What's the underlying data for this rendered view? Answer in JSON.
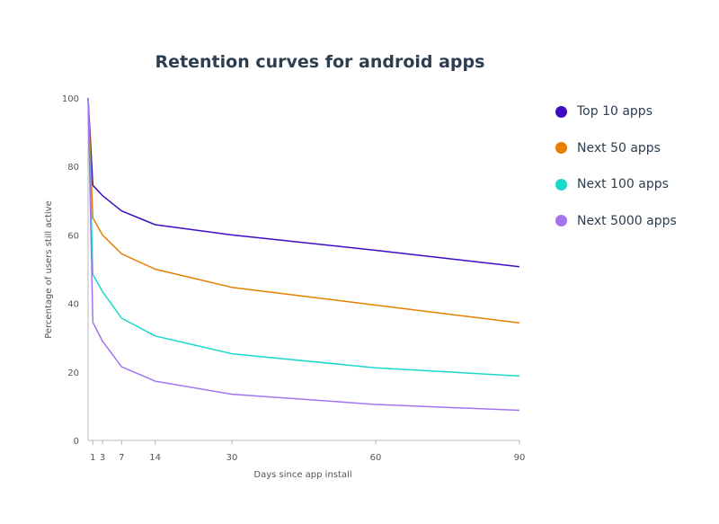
{
  "chart_data": {
    "type": "line",
    "title": "Retention curves for android apps",
    "xlabel": "Days since app install",
    "ylabel": "Percentage of users still active",
    "xlim": [
      0,
      90
    ],
    "ylim": [
      0,
      100
    ],
    "xticks": [
      1,
      3,
      7,
      14,
      30,
      60,
      90
    ],
    "yticks": [
      0,
      20,
      40,
      60,
      80,
      100
    ],
    "grid": false,
    "legend_position": "right",
    "x": [
      0,
      1,
      3,
      7,
      14,
      30,
      60,
      90
    ],
    "series": [
      {
        "name": "Top 10 apps",
        "color": "#3d0bc1",
        "values": [
          100,
          74.5,
          71.5,
          67,
          63,
          60,
          55.5,
          50.7
        ]
      },
      {
        "name": "Next 50 apps",
        "color": "#e67e00",
        "values": [
          100,
          65,
          60,
          54.5,
          50,
          44.7,
          39.5,
          34.3
        ]
      },
      {
        "name": "Next 100 apps",
        "color": "#1ad8cc",
        "values": [
          100,
          48.5,
          43.5,
          35.7,
          30.5,
          25.3,
          21.2,
          18.8
        ]
      },
      {
        "name": "Next 5000 apps",
        "color": "#a374f0",
        "values": [
          100,
          34.5,
          29,
          21.5,
          17.3,
          13.5,
          10.5,
          8.8
        ]
      }
    ]
  }
}
